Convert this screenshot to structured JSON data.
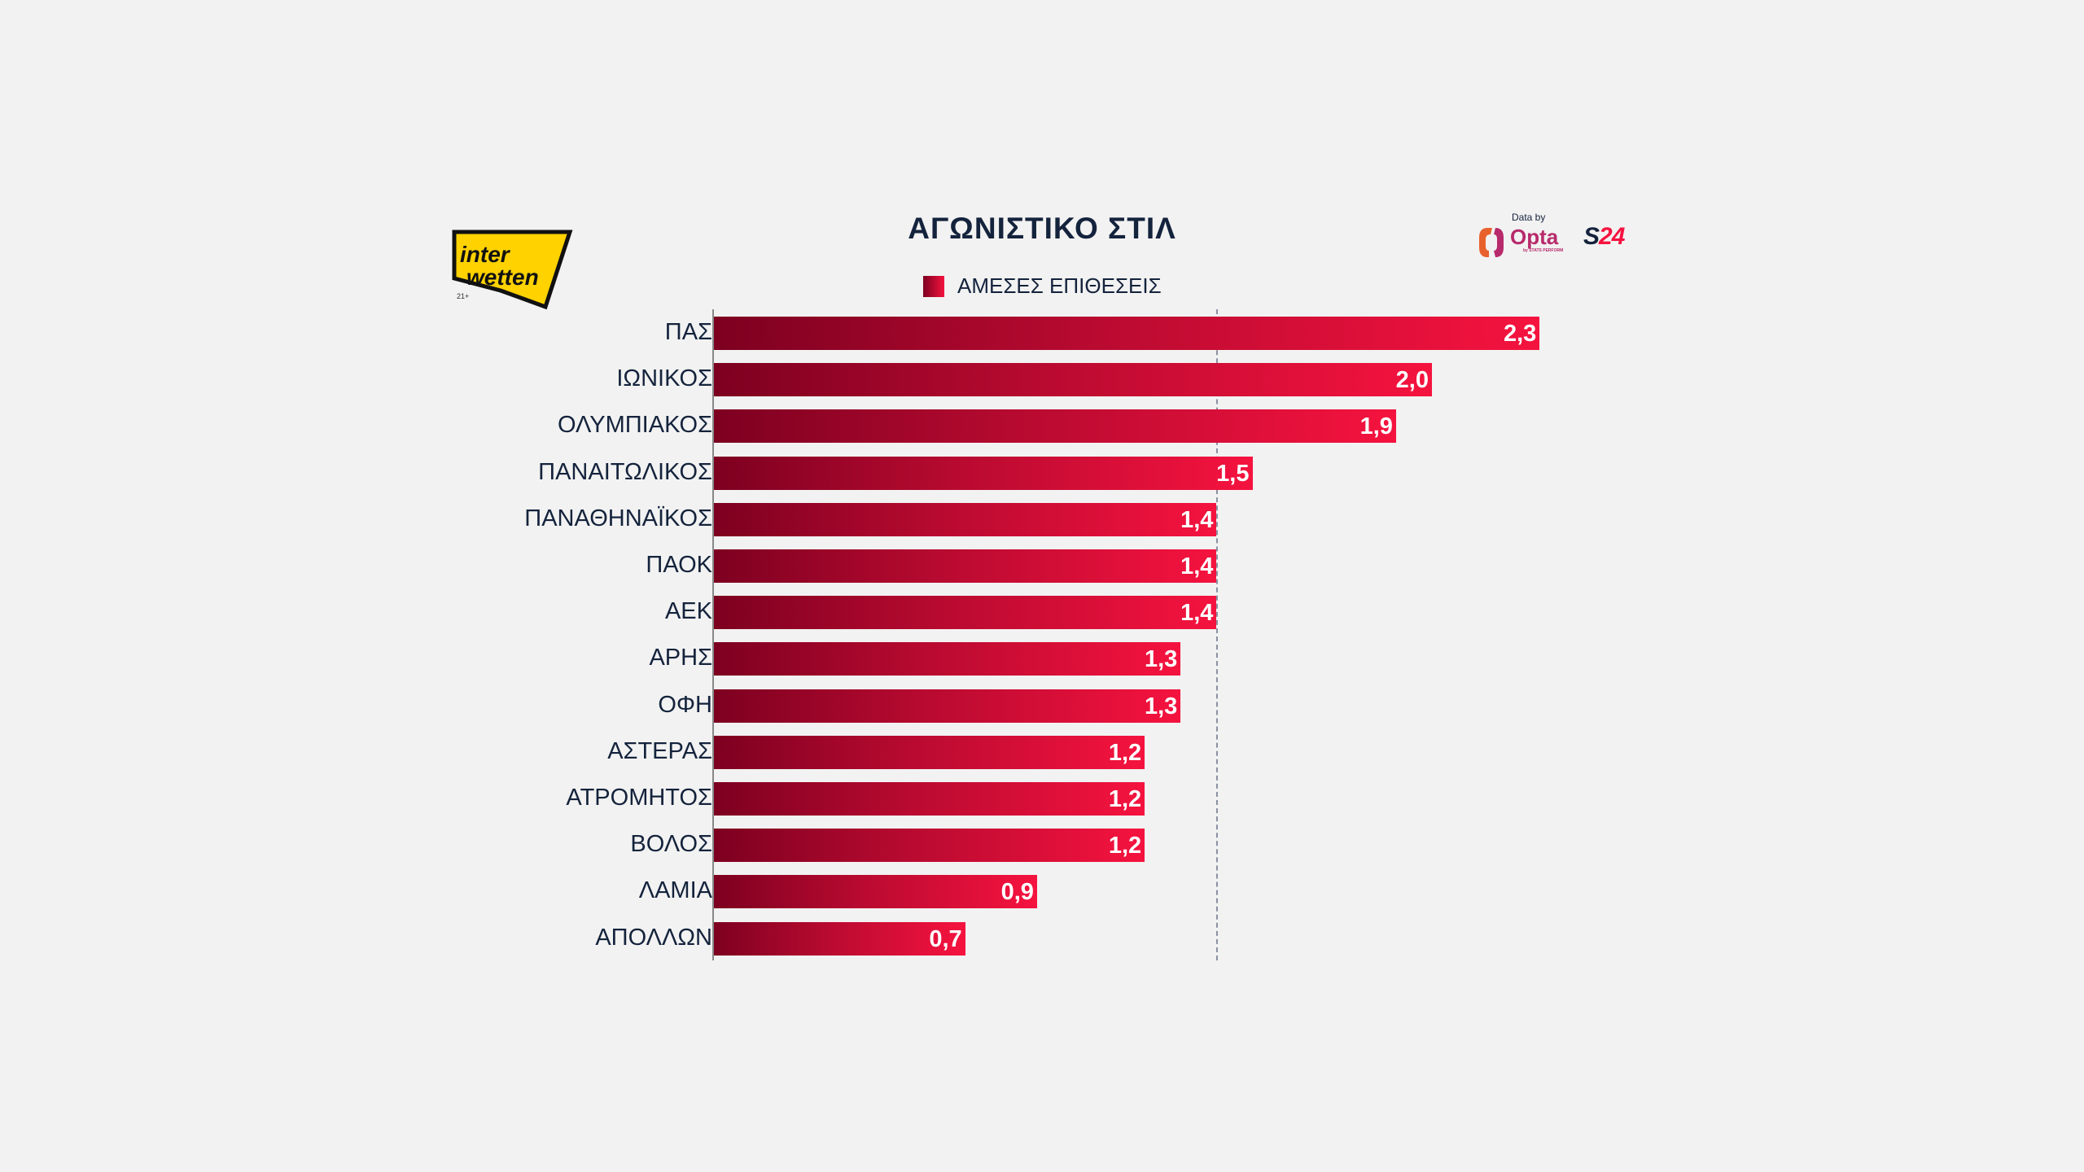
{
  "chart_data": {
    "type": "bar",
    "orientation": "horizontal",
    "title": "ΑΓΩΝΙΣΤΙΚΟ ΣΤΙΛ",
    "legend": [
      "ΑΜΕΣΕΣ ΕΠΙΘΕΣΕΙΣ"
    ],
    "legend_placement": "top-center",
    "categories": [
      "ΠΑΣ",
      "ΙΩΝΙΚΟΣ",
      "ΟΛΥΜΠΙΑΚΟΣ",
      "ΠΑΝΑΙΤΩΛΙΚΟΣ",
      "ΠΑΝΑΘΗΝΑΪΚΟΣ",
      "ΠΑΟΚ",
      "ΑΕΚ",
      "ΑΡΗΣ",
      "ΟΦΗ",
      "ΑΣΤΕΡΑΣ",
      "ΑΤΡΟΜΗΤΟΣ",
      "ΒΟΛΟΣ",
      "ΛΑΜΙΑ",
      "ΑΠΟΛΛΩΝ"
    ],
    "values": [
      2.3,
      2.0,
      1.9,
      1.5,
      1.4,
      1.4,
      1.4,
      1.3,
      1.3,
      1.2,
      1.2,
      1.2,
      0.9,
      0.7
    ],
    "value_labels": [
      "2,3",
      "2,0",
      "1,9",
      "1,5",
      "1,4",
      "1,4",
      "1,4",
      "1,3",
      "1,3",
      "1,2",
      "1,2",
      "1,2",
      "0,9",
      "0,7"
    ],
    "reference_line": 1.4,
    "colors": {
      "start": "#7d0020",
      "end": "#f5133f"
    }
  },
  "branding": {
    "sponsor": "inter wetten",
    "age": "21+",
    "data_by": "Data by",
    "provider": "Opta",
    "provider_sub": "by STATS PERFORM",
    "outlet": "S24"
  }
}
